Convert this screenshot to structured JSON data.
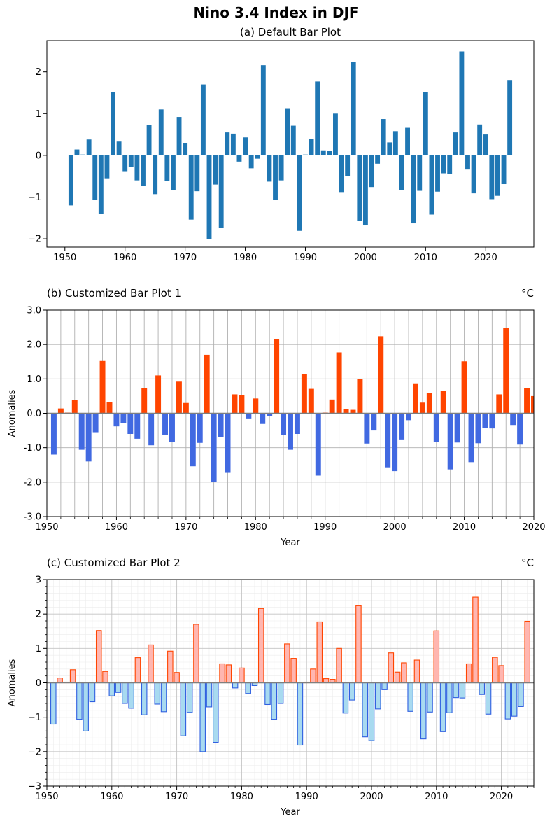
{
  "suptitle": "Nino 3.4 Index in DJF",
  "chart_data": [
    {
      "type": "bar",
      "title": "(a) Default Bar Plot",
      "xlabel": "",
      "ylabel": "",
      "xlim": [
        1947,
        2028
      ],
      "ylim": [
        -2.2,
        2.75
      ],
      "xticks": [
        "1950",
        "1960",
        "1970",
        "1980",
        "1990",
        "2000",
        "2010",
        "2020"
      ],
      "yticks": [
        "−2",
        "−1",
        "0",
        "1",
        "2"
      ],
      "grid": false,
      "bar_color": "#1f77b4",
      "x": [
        1951,
        1952,
        1953,
        1954,
        1955,
        1956,
        1957,
        1958,
        1959,
        1960,
        1961,
        1962,
        1963,
        1964,
        1965,
        1966,
        1967,
        1968,
        1969,
        1970,
        1971,
        1972,
        1973,
        1974,
        1975,
        1976,
        1977,
        1978,
        1979,
        1980,
        1981,
        1982,
        1983,
        1984,
        1985,
        1986,
        1987,
        1988,
        1989,
        1990,
        1991,
        1992,
        1993,
        1994,
        1995,
        1996,
        1997,
        1998,
        1999,
        2000,
        2001,
        2002,
        2003,
        2004,
        2005,
        2006,
        2007,
        2008,
        2009,
        2010,
        2011,
        2012,
        2013,
        2014,
        2015,
        2016,
        2017,
        2018,
        2019,
        2020,
        2021,
        2022,
        2023,
        2024
      ],
      "values": [
        -1.2,
        0.14,
        0.02,
        0.38,
        -1.06,
        -1.4,
        -0.55,
        1.52,
        0.33,
        -0.38,
        -0.28,
        -0.6,
        -0.74,
        0.73,
        -0.93,
        1.1,
        -0.62,
        -0.84,
        0.92,
        0.3,
        -1.54,
        -0.86,
        1.7,
        -2.0,
        -0.7,
        -1.73,
        0.55,
        0.52,
        -0.15,
        0.43,
        -0.31,
        -0.08,
        2.16,
        -0.63,
        -1.06,
        -0.6,
        1.13,
        0.71,
        -1.81,
        0.02,
        0.4,
        1.77,
        0.12,
        0.1,
        1.0,
        -0.88,
        -0.5,
        2.24,
        -1.57,
        -1.68,
        -0.76,
        -0.2,
        0.87,
        0.31,
        0.58,
        -0.83,
        0.66,
        -1.63,
        -0.85,
        1.51,
        -1.42,
        -0.87,
        -0.43,
        -0.44,
        0.55,
        2.49,
        -0.34,
        -0.91,
        0.74,
        0.5,
        -1.05,
        -0.97,
        -0.69,
        1.79
      ]
    },
    {
      "type": "bar",
      "title": "(b) Customized Bar Plot 1",
      "unit": "°C",
      "xlabel": "Year",
      "ylabel": "Anomalies",
      "xlim": [
        1950,
        2020
      ],
      "ylim": [
        -3,
        3
      ],
      "xticks": [
        "1950",
        "1960",
        "1970",
        "1980",
        "1990",
        "2000",
        "2010",
        "2020"
      ],
      "yticks": [
        "-3.0",
        "-2.0",
        "-1.0",
        "0.0",
        "1.0",
        "2.0",
        "3.0"
      ],
      "grid": true,
      "positive_color": "#ff4500",
      "negative_color": "#4169e1"
    },
    {
      "type": "bar",
      "title": "(c) Customized Bar Plot 2",
      "unit": "°C",
      "xlabel": "Year",
      "ylabel": "Anomalies",
      "xlim": [
        1950,
        2025
      ],
      "ylim": [
        -3,
        3
      ],
      "xticks": [
        "1950",
        "1960",
        "1970",
        "1980",
        "1990",
        "2000",
        "2010",
        "2020"
      ],
      "yticks": [
        "−3",
        "−2",
        "−1",
        "0",
        "1",
        "2",
        "3"
      ],
      "grid": true,
      "positive_fill": "#ffb6b0",
      "positive_edge": "#ff4500",
      "negative_fill": "#a8daf0",
      "negative_edge": "#2f5fe0"
    }
  ]
}
